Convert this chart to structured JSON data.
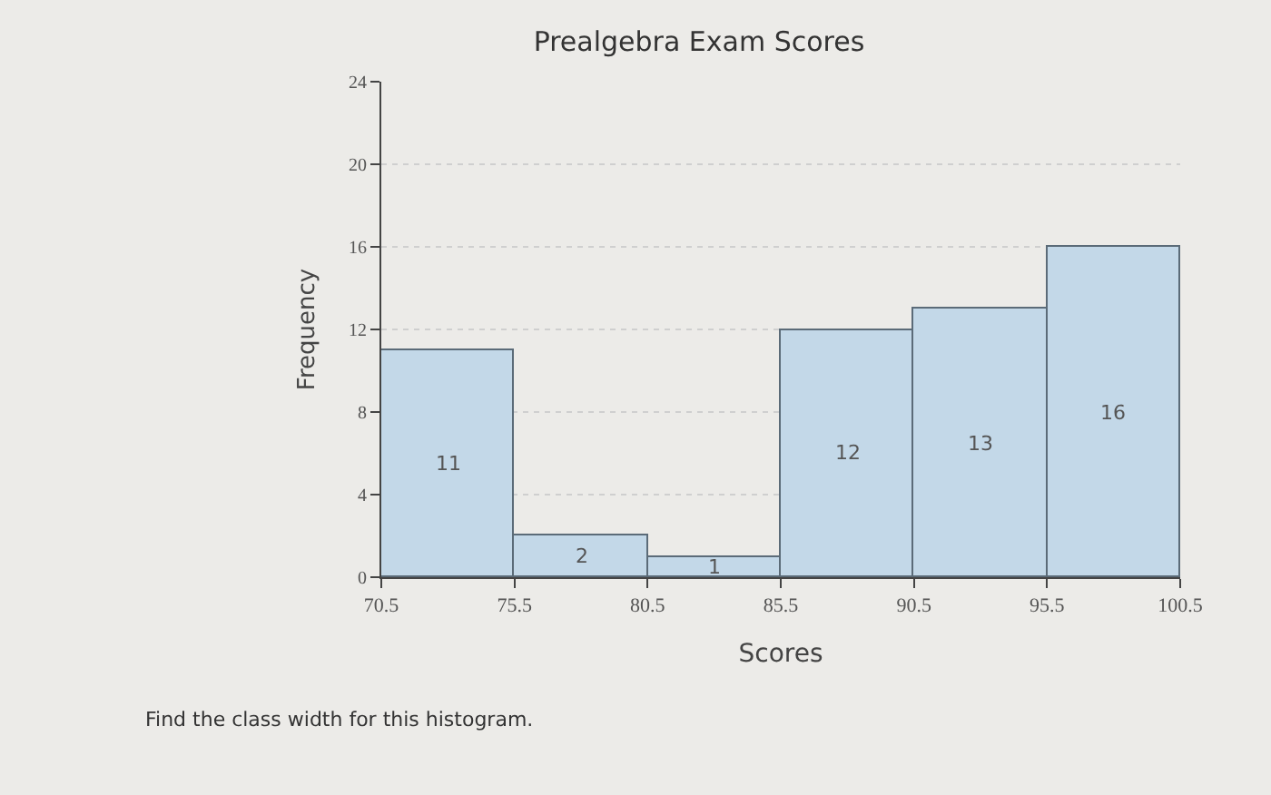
{
  "chart_data": {
    "type": "histogram",
    "title": "Prealgebra Exam Scores",
    "xlabel": "Scores",
    "ylabel": "Frequency",
    "bins": [
      70.5,
      75.5,
      80.5,
      85.5,
      90.5,
      95.5,
      100.5
    ],
    "values": [
      11,
      2,
      1,
      12,
      13,
      16
    ],
    "color": "#c3d8e8",
    "data_labels": true,
    "xlim": [
      70.5,
      100.5
    ],
    "xticks": [
      70.5,
      75.5,
      80.5,
      85.5,
      90.5,
      95.5,
      100.5
    ],
    "ylim": [
      0,
      24
    ],
    "yticks": [
      0,
      4,
      8,
      12,
      16,
      20,
      24
    ],
    "grid": "y",
    "annotations": [
      "Find the class width for this histogram."
    ]
  }
}
